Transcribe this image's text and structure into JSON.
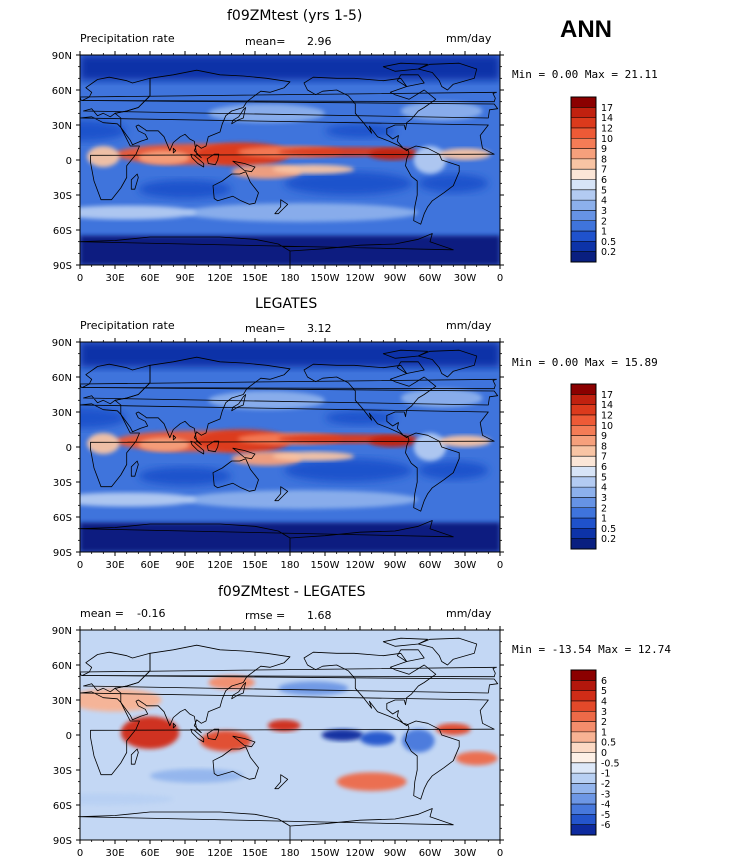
{
  "season": "ANN",
  "panels": [
    {
      "title": "f09ZMtest (yrs 1-5)",
      "left_label": "Precipitation rate",
      "stat1_label": "mean=",
      "stat1_value": "2.96",
      "stat2_label": "",
      "stat2_value": "",
      "units": "mm/day",
      "minmax": "Min =    0.00 Max =  21.11",
      "colorbar": {
        "labels": [
          "17",
          "14",
          "12",
          "10",
          "9",
          "8",
          "7",
          "6",
          "5",
          "4",
          "3",
          "2",
          "1",
          "0.5",
          "0.2"
        ],
        "colors": [
          "#8b0000",
          "#c1210f",
          "#dc3a1c",
          "#ee5a36",
          "#f47c56",
          "#f6a07c",
          "#f8c4a4",
          "#fbe6d7",
          "#d7e4f7",
          "#b3cbf2",
          "#8cb0ec",
          "#6693e5",
          "#3f74dc",
          "#1f52cc",
          "#0d33a8",
          "#091f80"
        ]
      }
    },
    {
      "title": "LEGATES",
      "left_label": "Precipitation rate",
      "stat1_label": "mean=",
      "stat1_value": "3.12",
      "stat2_label": "",
      "stat2_value": "",
      "units": "mm/day",
      "minmax": "Min =    0.00 Max =  15.89",
      "colorbar": {
        "labels": [
          "17",
          "14",
          "12",
          "10",
          "9",
          "8",
          "7",
          "6",
          "5",
          "4",
          "3",
          "2",
          "1",
          "0.5",
          "0.2"
        ],
        "colors": [
          "#8b0000",
          "#c1210f",
          "#dc3a1c",
          "#ee5a36",
          "#f47c56",
          "#f6a07c",
          "#f8c4a4",
          "#fbe6d7",
          "#d7e4f7",
          "#b3cbf2",
          "#8cb0ec",
          "#6693e5",
          "#3f74dc",
          "#1f52cc",
          "#0d33a8",
          "#091f80"
        ]
      }
    },
    {
      "title": "f09ZMtest - LEGATES",
      "left_label": "",
      "stat1_label": "mean =",
      "stat1_value": "-0.16",
      "stat2_label": "rmse =",
      "stat2_value": "1.68",
      "units": "mm/day",
      "minmax": "Min = -13.54 Max =  12.74",
      "colorbar": {
        "labels": [
          "6",
          "5",
          "4",
          "3",
          "2",
          "1",
          "0.5",
          "0",
          "-0.5",
          "-1",
          "-2",
          "-3",
          "-4",
          "-5",
          "-6"
        ],
        "colors": [
          "#8b0000",
          "#b3170c",
          "#d02c17",
          "#e3492a",
          "#ee6a48",
          "#f48d6c",
          "#f8b394",
          "#fbd9c4",
          "#fdf0e6",
          "#dde8f8",
          "#b8d0f3",
          "#93b5ed",
          "#6d97e5",
          "#4778dc",
          "#2455cc",
          "#0d2a9e"
        ]
      }
    }
  ],
  "lat_ticks": [
    "90N",
    "60N",
    "30N",
    "0",
    "30S",
    "60S",
    "90S"
  ],
  "lon_ticks": [
    "0",
    "30E",
    "60E",
    "90E",
    "120E",
    "150E",
    "180",
    "150W",
    "120W",
    "90W",
    "60W",
    "30W",
    "0"
  ]
}
